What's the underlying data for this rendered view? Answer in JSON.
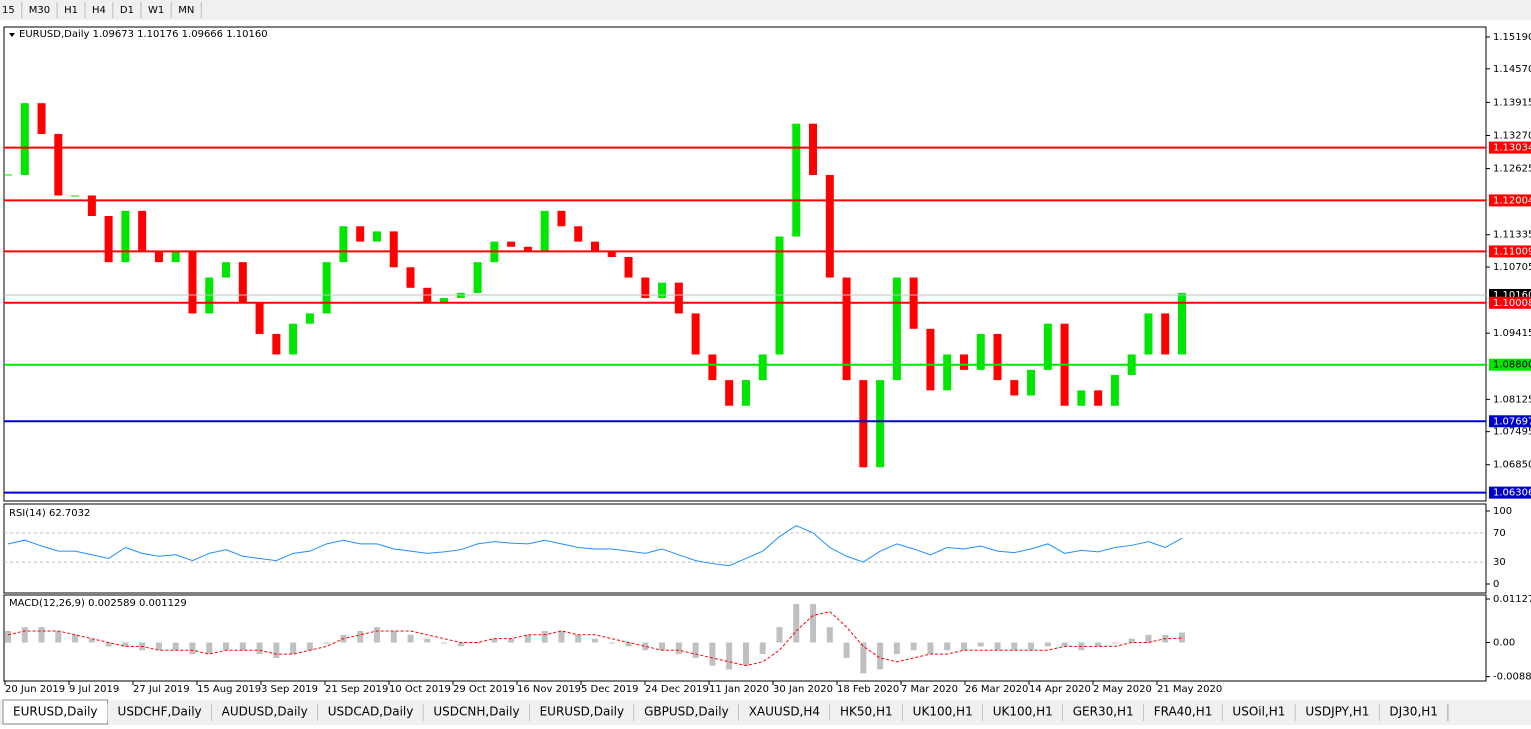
{
  "toolbar": {
    "items": [
      "15",
      "M30",
      "H1",
      "H4",
      "D1",
      "W1",
      "MN"
    ]
  },
  "price": {
    "header": "EURUSD,Daily  1.09673 1.10176 1.09666 1.10160",
    "ylim": [
      1.06162,
      1.15366
    ],
    "yticks": [
      {
        "value": 1.1519,
        "label": "1.15190"
      },
      {
        "value": 1.1457,
        "label": "1.14570"
      },
      1.13915,
      {
        "value": 1.1327,
        "label": "1.13270"
      },
      1.12625,
      1.11335,
      1.10705,
      1.09415,
      1.08125,
      1.07495,
      {
        "value": 1.0685,
        "label": "1.06850"
      }
    ],
    "bull_color": "#00e600",
    "bear_color": "#ff0000",
    "closes": [
      1.125,
      1.139,
      1.133,
      1.121,
      1.121,
      1.117,
      1.108,
      1.118,
      1.11,
      1.108,
      1.11,
      1.098,
      1.105,
      1.108,
      1.1,
      1.094,
      1.09,
      1.096,
      1.098,
      1.108,
      1.115,
      1.112,
      1.114,
      1.107,
      1.103,
      1.1,
      1.101,
      1.102,
      1.108,
      1.112,
      1.111,
      1.11,
      1.118,
      1.115,
      1.112,
      1.11,
      1.109,
      1.105,
      1.101,
      1.104,
      1.098,
      1.09,
      1.085,
      1.08,
      1.085,
      1.09,
      1.113,
      1.135,
      1.125,
      1.105,
      1.085,
      1.068,
      1.085,
      1.105,
      1.095,
      1.083,
      1.09,
      1.087,
      1.094,
      1.085,
      1.082,
      1.087,
      1.096,
      1.08,
      1.083,
      1.08,
      1.086,
      1.09,
      1.098,
      1.09,
      1.102
    ],
    "levels": [
      {
        "value": 1.13034,
        "color": "#ff0000"
      },
      {
        "value": 1.12004,
        "color": "#ff0000"
      },
      {
        "value": 1.11009,
        "color": "#ff0000"
      },
      {
        "value": 1.10008,
        "color": "#ff0000"
      },
      {
        "value": {
          "value": 1.088,
          "label": "1.08800"
        },
        "color": "#00e600"
      },
      {
        "value": 1.07697,
        "color": "#0000cc"
      },
      {
        "value": 1.06306,
        "color": "#0000cc"
      }
    ],
    "current": {
      "value": 1.1016,
      "label": "1.10160"
    }
  },
  "rsi": {
    "label": "RSI(14) 62.7032",
    "ylim": [
      0,
      100
    ],
    "yticks": [
      100,
      70,
      30,
      0
    ],
    "color": "#1e90ff",
    "values": [
      55,
      60,
      52,
      45,
      45,
      40,
      35,
      50,
      42,
      38,
      40,
      32,
      42,
      47,
      38,
      35,
      32,
      42,
      45,
      55,
      60,
      55,
      55,
      48,
      45,
      42,
      44,
      47,
      55,
      58,
      56,
      55,
      60,
      55,
      50,
      48,
      48,
      45,
      42,
      48,
      40,
      32,
      28,
      25,
      35,
      45,
      65,
      80,
      70,
      50,
      38,
      30,
      45,
      55,
      48,
      40,
      50,
      48,
      52,
      45,
      43,
      48,
      55,
      42,
      46,
      44,
      50,
      53,
      58,
      50,
      62.7
    ]
  },
  "macd": {
    "label": "MACD(12,26,9) 0.002589 0.001129",
    "ylim": [
      -0.0092,
      0.0118
    ],
    "yticks": [
      0.011277,
      {
        "value": 0,
        "label": "0.00"
      },
      -0.008845
    ],
    "signal_color": "#ff0000",
    "histogram": [
      0.003,
      0.004,
      0.004,
      0.003,
      0.002,
      0.001,
      -0.001,
      -0.001,
      -0.002,
      -0.002,
      -0.002,
      -0.003,
      -0.003,
      -0.002,
      -0.002,
      -0.003,
      -0.004,
      -0.003,
      -0.002,
      0,
      0.002,
      0.003,
      0.004,
      0.003,
      0.002,
      0.001,
      0,
      -0.001,
      0,
      0.001,
      0.001,
      0.002,
      0.003,
      0.003,
      0.002,
      0.001,
      0,
      -0.001,
      -0.002,
      -0.002,
      -0.003,
      -0.004,
      -0.006,
      -0.007,
      -0.006,
      -0.003,
      0.004,
      0.01,
      0.01,
      0.004,
      -0.004,
      -0.008,
      -0.007,
      -0.003,
      -0.002,
      -0.003,
      -0.002,
      -0.002,
      -0.001,
      -0.002,
      -0.002,
      -0.002,
      -0.001,
      -0.001,
      -0.002,
      -0.001,
      0,
      0.001,
      0.002,
      0.002,
      0.002589
    ],
    "signal": [
      0.002,
      0.003,
      0.003,
      0.003,
      0.002,
      0.001,
      0,
      -0.001,
      -0.001,
      -0.002,
      -0.002,
      -0.002,
      -0.003,
      -0.002,
      -0.002,
      -0.002,
      -0.003,
      -0.003,
      -0.002,
      -0.001,
      0.001,
      0.002,
      0.003,
      0.003,
      0.003,
      0.002,
      0.001,
      0,
      0,
      0.001,
      0.001,
      0.002,
      0.002,
      0.003,
      0.002,
      0.002,
      0.001,
      0,
      -0.001,
      -0.002,
      -0.002,
      -0.003,
      -0.004,
      -0.005,
      -0.006,
      -0.005,
      -0.002,
      0.003,
      0.007,
      0.008,
      0.004,
      -0.001,
      -0.004,
      -0.005,
      -0.004,
      -0.003,
      -0.003,
      -0.002,
      -0.002,
      -0.002,
      -0.002,
      -0.002,
      -0.002,
      -0.001,
      -0.001,
      -0.001,
      -0.001,
      0,
      0,
      0.001,
      0.001129
    ]
  },
  "dates": [
    "20 Jun 2019",
    "9 Jul 2019",
    "27 Jul 2019",
    "15 Aug 2019",
    "3 Sep 2019",
    "21 Sep 2019",
    "10 Oct 2019",
    "29 Oct 2019",
    "16 Nov 2019",
    "5 Dec 2019",
    "24 Dec 2019",
    "11 Jan 2020",
    "30 Jan 2020",
    "18 Feb 2020",
    "7 Mar 2020",
    "26 Mar 2020",
    "14 Apr 2020",
    "2 May 2020",
    "21 May 2020"
  ],
  "tabs": [
    "EURUSD,Daily",
    "USDCHF,Daily",
    "AUDUSD,Daily",
    "USDCAD,Daily",
    "USDCNH,Daily",
    "EURUSD,Daily",
    "GBPUSD,Daily",
    "XAUUSD,H4",
    "HK50,H1",
    "UK100,H1",
    "UK100,H1",
    "GER30,H1",
    "FRA40,H1",
    "USOil,H1",
    "USDJPY,H1",
    "DJ30,H1"
  ]
}
